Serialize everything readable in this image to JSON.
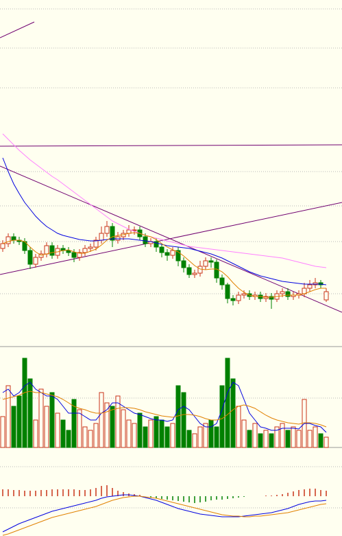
{
  "chart_data": [
    {
      "type": "candlestick",
      "ylim": [
        0,
        500
      ],
      "up_color": "#c83218",
      "down_color": "#008000",
      "open": [
        138,
        145,
        155,
        150,
        148,
        135,
        115,
        125,
        130,
        142,
        128,
        138,
        135,
        132,
        125,
        132,
        138,
        140,
        150,
        160,
        170,
        150,
        155,
        160,
        165,
        165,
        155,
        145,
        148,
        140,
        132,
        128,
        135,
        120,
        110,
        100,
        102,
        112,
        120,
        118,
        95,
        85,
        65,
        62,
        70,
        72,
        68,
        70,
        65,
        68,
        64,
        72,
        75,
        68,
        70,
        72,
        80,
        85,
        88,
        63
      ],
      "high": [
        150,
        160,
        160,
        155,
        153,
        140,
        130,
        135,
        147,
        147,
        143,
        143,
        140,
        137,
        137,
        143,
        145,
        155,
        170,
        178,
        175,
        162,
        165,
        172,
        170,
        170,
        160,
        153,
        153,
        145,
        137,
        140,
        140,
        125,
        115,
        107,
        120,
        125,
        125,
        122,
        100,
        88,
        70,
        75,
        77,
        77,
        75,
        75,
        73,
        73,
        77,
        80,
        80,
        75,
        77,
        88,
        92,
        95,
        92,
        80
      ],
      "low": [
        133,
        140,
        145,
        143,
        130,
        108,
        110,
        120,
        125,
        123,
        123,
        130,
        127,
        118,
        120,
        127,
        133,
        135,
        145,
        155,
        140,
        145,
        150,
        155,
        158,
        150,
        140,
        140,
        133,
        125,
        120,
        123,
        112,
        103,
        95,
        95,
        97,
        107,
        110,
        88,
        78,
        58,
        55,
        57,
        65,
        63,
        63,
        60,
        60,
        50,
        60,
        67,
        63,
        63,
        65,
        67,
        75,
        80,
        80,
        60
      ],
      "close": [
        145,
        155,
        150,
        148,
        135,
        115,
        125,
        130,
        142,
        128,
        138,
        135,
        132,
        125,
        132,
        138,
        140,
        150,
        160,
        170,
        150,
        155,
        160,
        165,
        165,
        155,
        145,
        148,
        140,
        132,
        128,
        135,
        120,
        110,
        100,
        102,
        112,
        120,
        118,
        95,
        85,
        65,
        62,
        70,
        72,
        68,
        70,
        65,
        68,
        64,
        72,
        75,
        68,
        70,
        72,
        80,
        85,
        88,
        85,
        75
      ],
      "series": [
        {
          "color": "#0000e0",
          "values": [
            270,
            250,
            232,
            218,
            205,
            195,
            185,
            177,
            170,
            165,
            160,
            157,
            155,
            153,
            151,
            150,
            149,
            149,
            150,
            151,
            152,
            152,
            152,
            152,
            151,
            150,
            149,
            148,
            146,
            144,
            142,
            141,
            140,
            139,
            138,
            136,
            134,
            132,
            130,
            127,
            124,
            120,
            116,
            112,
            108,
            104,
            101,
            98,
            96,
            94,
            92,
            90,
            89,
            88,
            87,
            86,
            86,
            86,
            86,
            85
          ]
        },
        {
          "color": "#ff80ff",
          "values": [
            305,
            297,
            289,
            281,
            274,
            267,
            261,
            255,
            249,
            243,
            238,
            232,
            226,
            220,
            214,
            208,
            202,
            196,
            190,
            184,
            178,
            174,
            170,
            166,
            163,
            160,
            157,
            155,
            153,
            151,
            149,
            147,
            145,
            143,
            141,
            140,
            139,
            138,
            137,
            136,
            135,
            134,
            133,
            132,
            131,
            130,
            129,
            128,
            127,
            126,
            125,
            124,
            122,
            120,
            118,
            116,
            114,
            112,
            111,
            110
          ]
        },
        {
          "color": "#e08000",
          "values": [
            145,
            148,
            150,
            150,
            148,
            140,
            133,
            128,
            130,
            132,
            133,
            135,
            136,
            133,
            131,
            131,
            134,
            137,
            143,
            150,
            155,
            157,
            158,
            160,
            161,
            160,
            157,
            155,
            151,
            145,
            140,
            136,
            133,
            127,
            120,
            113,
            108,
            107,
            108,
            108,
            104,
            97,
            88,
            80,
            74,
            70,
            68,
            68,
            67,
            67,
            68,
            69,
            70,
            70,
            70,
            72,
            75,
            78,
            80,
            80
          ]
        }
      ]
    },
    {
      "type": "volume",
      "ylim": [
        0,
        147
      ],
      "values": [
        45,
        90,
        60,
        75,
        130,
        100,
        40,
        85,
        60,
        80,
        50,
        40,
        25,
        70,
        55,
        30,
        25,
        35,
        80,
        65,
        60,
        75,
        55,
        40,
        35,
        50,
        30,
        40,
        45,
        40,
        30,
        35,
        90,
        80,
        25,
        20,
        30,
        35,
        40,
        30,
        90,
        130,
        100,
        60,
        40,
        25,
        35,
        20,
        25,
        20,
        30,
        35,
        25,
        30,
        25,
        70,
        25,
        30,
        20,
        15
      ],
      "series": [
        {
          "color": "#0000e0",
          "values": [
            80,
            85,
            75,
            80,
            90,
            95,
            85,
            80,
            75,
            75,
            70,
            60,
            50,
            50,
            50,
            45,
            40,
            40,
            50,
            55,
            65,
            65,
            60,
            55,
            50,
            48,
            45,
            42,
            40,
            40,
            38,
            40,
            55,
            60,
            55,
            45,
            35,
            30,
            30,
            35,
            55,
            80,
            95,
            90,
            70,
            50,
            40,
            30,
            28,
            25,
            25,
            28,
            28,
            28,
            27,
            35,
            35,
            32,
            30,
            22
          ]
        },
        {
          "color": "#e08000",
          "values": [
            70,
            72,
            74,
            76,
            80,
            82,
            80,
            80,
            78,
            76,
            74,
            70,
            65,
            60,
            57,
            55,
            52,
            50,
            50,
            52,
            55,
            57,
            58,
            58,
            57,
            55,
            52,
            50,
            48,
            46,
            45,
            44,
            46,
            48,
            48,
            47,
            45,
            42,
            40,
            40,
            42,
            48,
            55,
            60,
            62,
            60,
            57,
            52,
            47,
            43,
            40,
            38,
            36,
            35,
            34,
            36,
            36,
            35,
            33,
            30
          ]
        }
      ]
    },
    {
      "type": "macd",
      "ylim": [
        -58,
        33
      ],
      "up_color": "#c83218",
      "down_color": "#008000",
      "values": [
        10,
        10,
        9,
        9,
        8,
        8,
        8,
        9,
        9,
        10,
        10,
        10,
        10,
        10,
        9,
        9,
        10,
        12,
        15,
        16,
        12,
        8,
        6,
        4,
        3,
        2,
        0,
        -2,
        -3,
        -4,
        -5,
        -6,
        -7,
        -8,
        -9,
        -10,
        -9,
        -8,
        -6,
        -5,
        -5,
        -4,
        -3,
        -2,
        -1,
        0,
        0,
        0,
        1,
        1,
        2,
        3,
        5,
        7,
        9,
        10,
        11,
        11,
        9,
        8
      ],
      "series": [
        {
          "color": "#0000e0",
          "values": [
            -52,
            -48,
            -44,
            -40,
            -37,
            -34,
            -31,
            -28,
            -25,
            -22,
            -20,
            -18,
            -16,
            -14,
            -12,
            -10,
            -8,
            -6,
            -3,
            -1,
            0,
            1,
            2,
            2,
            1,
            0,
            -2,
            -4,
            -6,
            -9,
            -12,
            -15,
            -18,
            -20,
            -22,
            -24,
            -26,
            -27,
            -28,
            -29,
            -30,
            -30,
            -30,
            -30,
            -29,
            -28,
            -27,
            -26,
            -25,
            -24,
            -22,
            -20,
            -18,
            -15,
            -12,
            -10,
            -8,
            -7,
            -7,
            -6
          ]
        },
        {
          "color": "#e08000",
          "values": [
            -57,
            -55,
            -52,
            -49,
            -46,
            -43,
            -40,
            -37,
            -34,
            -31,
            -29,
            -27,
            -25,
            -23,
            -21,
            -19,
            -17,
            -15,
            -12,
            -9,
            -6,
            -4,
            -2,
            -1,
            0,
            0,
            -1,
            -2,
            -3,
            -5,
            -7,
            -9,
            -11,
            -13,
            -15,
            -17,
            -19,
            -21,
            -23,
            -25,
            -27,
            -28,
            -29,
            -29,
            -30,
            -30,
            -29,
            -29,
            -28,
            -27,
            -26,
            -25,
            -24,
            -22,
            -20,
            -18,
            -16,
            -14,
            -12,
            -11
          ]
        }
      ]
    }
  ]
}
